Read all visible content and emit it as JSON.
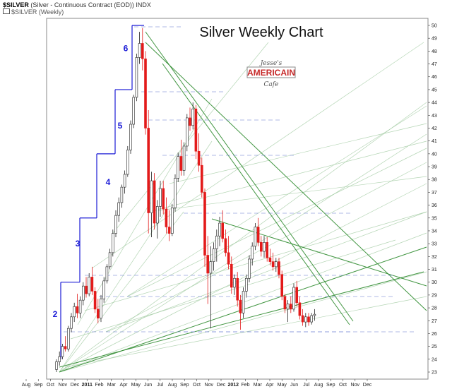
{
  "header": {
    "symbol": "$SILVER",
    "description": "(Silver - Continuous Contract (EOD)) INDX",
    "legend": "$SILVER (Weekly)"
  },
  "logo": {
    "line1": "Jesse's",
    "line2": "AMERICAIN",
    "line3": "Cafe"
  },
  "colors": {
    "up": "#ffffff",
    "down": "#e31a1a",
    "fan": "#2e8b2e",
    "wave": "#1a1ad6",
    "dash": "#7a8ad6"
  },
  "chart_data": {
    "type": "candlestick",
    "title": "Silver Weekly Chart",
    "xlabel": "",
    "ylabel": "",
    "ylim": [
      22.5,
      50.5
    ],
    "yticks": [
      23,
      24,
      25,
      26,
      27,
      28,
      29,
      30,
      31,
      32,
      33,
      34,
      35,
      36,
      37,
      38,
      39,
      40,
      41,
      42,
      43,
      44,
      45,
      46,
      47,
      48,
      49,
      50
    ],
    "y_axis_side": "right",
    "grid": false,
    "x_month_labels": [
      "Aug",
      "Sep",
      "Oct",
      "Nov",
      "Dec",
      "2011",
      "Feb",
      "Mar",
      "Apr",
      "May",
      "Jun",
      "Jul",
      "Aug",
      "Sep",
      "Oct",
      "Nov",
      "Dec",
      "2012",
      "Feb",
      "Mar",
      "Apr",
      "May",
      "Jun",
      "Jul",
      "Aug",
      "Sep",
      "Oct",
      "Nov",
      "Dec"
    ],
    "wave_labels": [
      "2",
      "3",
      "4",
      "5",
      "6"
    ],
    "wave_label_prices": [
      27.5,
      33.0,
      37.8,
      42.2,
      48.2
    ],
    "wave_steps": [
      {
        "label": "2",
        "low": 24.0,
        "high": 30.0
      },
      {
        "label": "3",
        "low": 30.0,
        "high": 35.0
      },
      {
        "label": "4",
        "low": 35.0,
        "high": 40.0
      },
      {
        "label": "5",
        "low": 40.0,
        "high": 45.0
      },
      {
        "label": "6",
        "low": 45.0,
        "high": 50.0
      }
    ],
    "candles": [
      {
        "o": 23.2,
        "h": 24.0,
        "l": 23.0,
        "c": 23.8
      },
      {
        "o": 23.8,
        "h": 24.6,
        "l": 23.5,
        "c": 24.2
      },
      {
        "o": 24.2,
        "h": 25.2,
        "l": 24.0,
        "c": 25.0
      },
      {
        "o": 25.0,
        "h": 25.8,
        "l": 24.6,
        "c": 24.8
      },
      {
        "o": 24.8,
        "h": 26.6,
        "l": 24.6,
        "c": 26.4
      },
      {
        "o": 26.4,
        "h": 27.6,
        "l": 26.1,
        "c": 27.3
      },
      {
        "o": 27.3,
        "h": 28.4,
        "l": 26.9,
        "c": 28.1
      },
      {
        "o": 28.1,
        "h": 29.1,
        "l": 27.2,
        "c": 27.6
      },
      {
        "o": 27.6,
        "h": 28.9,
        "l": 27.2,
        "c": 28.6
      },
      {
        "o": 28.6,
        "h": 30.0,
        "l": 28.2,
        "c": 29.7
      },
      {
        "o": 29.7,
        "h": 30.4,
        "l": 28.8,
        "c": 29.1
      },
      {
        "o": 29.1,
        "h": 30.7,
        "l": 28.9,
        "c": 30.4
      },
      {
        "o": 30.4,
        "h": 31.2,
        "l": 29.0,
        "c": 29.3
      },
      {
        "o": 29.3,
        "h": 29.6,
        "l": 27.6,
        "c": 27.9
      },
      {
        "o": 27.9,
        "h": 28.7,
        "l": 26.8,
        "c": 27.2
      },
      {
        "o": 27.2,
        "h": 29.0,
        "l": 26.9,
        "c": 28.7
      },
      {
        "o": 28.7,
        "h": 30.4,
        "l": 28.4,
        "c": 30.1
      },
      {
        "o": 30.1,
        "h": 31.4,
        "l": 29.9,
        "c": 31.2
      },
      {
        "o": 31.2,
        "h": 32.6,
        "l": 31.0,
        "c": 32.3
      },
      {
        "o": 32.3,
        "h": 34.1,
        "l": 32.0,
        "c": 33.8
      },
      {
        "o": 33.8,
        "h": 35.6,
        "l": 33.5,
        "c": 35.2
      },
      {
        "o": 35.2,
        "h": 36.6,
        "l": 34.7,
        "c": 36.2
      },
      {
        "o": 36.2,
        "h": 37.6,
        "l": 35.8,
        "c": 37.4
      },
      {
        "o": 37.4,
        "h": 38.7,
        "l": 36.9,
        "c": 38.4
      },
      {
        "o": 38.4,
        "h": 40.6,
        "l": 38.2,
        "c": 40.3
      },
      {
        "o": 40.3,
        "h": 42.6,
        "l": 40.0,
        "c": 42.3
      },
      {
        "o": 42.3,
        "h": 44.6,
        "l": 42.0,
        "c": 44.4
      },
      {
        "o": 44.4,
        "h": 47.8,
        "l": 44.1,
        "c": 47.5
      },
      {
        "o": 47.5,
        "h": 49.5,
        "l": 47.0,
        "c": 48.6
      },
      {
        "o": 48.6,
        "h": 49.8,
        "l": 46.5,
        "c": 47.4
      },
      {
        "o": 47.4,
        "h": 48.0,
        "l": 41.5,
        "c": 42.0
      },
      {
        "o": 42.0,
        "h": 43.4,
        "l": 33.8,
        "c": 35.4
      },
      {
        "o": 35.4,
        "h": 38.6,
        "l": 33.5,
        "c": 37.9
      },
      {
        "o": 37.9,
        "h": 38.5,
        "l": 34.1,
        "c": 34.6
      },
      {
        "o": 34.6,
        "h": 36.4,
        "l": 33.4,
        "c": 35.9
      },
      {
        "o": 35.9,
        "h": 37.9,
        "l": 35.1,
        "c": 37.3
      },
      {
        "o": 37.3,
        "h": 37.9,
        "l": 35.3,
        "c": 35.7
      },
      {
        "o": 35.7,
        "h": 36.6,
        "l": 33.8,
        "c": 34.3
      },
      {
        "o": 34.3,
        "h": 35.6,
        "l": 33.2,
        "c": 33.8
      },
      {
        "o": 33.8,
        "h": 36.1,
        "l": 33.6,
        "c": 35.8
      },
      {
        "o": 35.8,
        "h": 38.4,
        "l": 35.5,
        "c": 38.1
      },
      {
        "o": 38.1,
        "h": 40.1,
        "l": 37.8,
        "c": 39.8
      },
      {
        "o": 39.8,
        "h": 41.1,
        "l": 38.3,
        "c": 38.7
      },
      {
        "o": 38.7,
        "h": 40.9,
        "l": 38.3,
        "c": 40.6
      },
      {
        "o": 40.6,
        "h": 43.1,
        "l": 40.2,
        "c": 42.8
      },
      {
        "o": 42.8,
        "h": 43.6,
        "l": 41.8,
        "c": 42.2
      },
      {
        "o": 42.2,
        "h": 44.0,
        "l": 41.9,
        "c": 43.5
      },
      {
        "o": 43.5,
        "h": 43.8,
        "l": 39.6,
        "c": 40.2
      },
      {
        "o": 40.2,
        "h": 41.6,
        "l": 38.6,
        "c": 39.1
      },
      {
        "o": 39.1,
        "h": 39.7,
        "l": 36.6,
        "c": 37.0
      },
      {
        "o": 37.0,
        "h": 37.3,
        "l": 31.2,
        "c": 32.1
      },
      {
        "o": 32.1,
        "h": 33.6,
        "l": 28.3,
        "c": 30.7
      },
      {
        "o": 30.7,
        "h": 32.8,
        "l": 26.4,
        "c": 31.6
      },
      {
        "o": 31.6,
        "h": 33.1,
        "l": 30.9,
        "c": 32.6
      },
      {
        "o": 32.6,
        "h": 34.1,
        "l": 31.6,
        "c": 33.6
      },
      {
        "o": 33.6,
        "h": 35.1,
        "l": 32.8,
        "c": 34.6
      },
      {
        "o": 34.6,
        "h": 35.6,
        "l": 33.1,
        "c": 33.4
      },
      {
        "o": 33.4,
        "h": 34.1,
        "l": 32.0,
        "c": 32.3
      },
      {
        "o": 32.3,
        "h": 33.6,
        "l": 31.0,
        "c": 31.4
      },
      {
        "o": 31.4,
        "h": 32.0,
        "l": 29.1,
        "c": 29.6
      },
      {
        "o": 29.6,
        "h": 30.6,
        "l": 29.0,
        "c": 30.3
      },
      {
        "o": 30.3,
        "h": 30.8,
        "l": 28.1,
        "c": 28.6
      },
      {
        "o": 28.6,
        "h": 29.0,
        "l": 26.3,
        "c": 27.6
      },
      {
        "o": 27.6,
        "h": 29.6,
        "l": 27.2,
        "c": 29.3
      },
      {
        "o": 29.3,
        "h": 30.6,
        "l": 28.8,
        "c": 30.3
      },
      {
        "o": 30.3,
        "h": 32.1,
        "l": 30.0,
        "c": 31.8
      },
      {
        "o": 31.8,
        "h": 33.1,
        "l": 31.3,
        "c": 32.8
      },
      {
        "o": 32.8,
        "h": 34.6,
        "l": 32.5,
        "c": 34.3
      },
      {
        "o": 34.3,
        "h": 35.0,
        "l": 32.8,
        "c": 33.1
      },
      {
        "o": 33.1,
        "h": 33.6,
        "l": 32.0,
        "c": 32.4
      },
      {
        "o": 32.4,
        "h": 33.6,
        "l": 31.9,
        "c": 33.1
      },
      {
        "o": 33.1,
        "h": 33.5,
        "l": 31.6,
        "c": 31.9
      },
      {
        "o": 31.9,
        "h": 32.6,
        "l": 31.3,
        "c": 31.6
      },
      {
        "o": 31.6,
        "h": 32.3,
        "l": 30.9,
        "c": 31.2
      },
      {
        "o": 31.2,
        "h": 31.9,
        "l": 30.8,
        "c": 31.6
      },
      {
        "o": 31.6,
        "h": 31.9,
        "l": 30.3,
        "c": 30.6
      },
      {
        "o": 30.6,
        "h": 30.9,
        "l": 28.6,
        "c": 28.9
      },
      {
        "o": 28.9,
        "h": 29.1,
        "l": 27.6,
        "c": 27.9
      },
      {
        "o": 27.9,
        "h": 28.6,
        "l": 26.9,
        "c": 28.3
      },
      {
        "o": 28.3,
        "h": 28.9,
        "l": 27.6,
        "c": 27.9
      },
      {
        "o": 27.9,
        "h": 29.9,
        "l": 27.7,
        "c": 29.6
      },
      {
        "o": 29.6,
        "h": 30.1,
        "l": 28.1,
        "c": 28.4
      },
      {
        "o": 28.4,
        "h": 28.9,
        "l": 27.1,
        "c": 27.4
      },
      {
        "o": 27.4,
        "h": 27.9,
        "l": 26.6,
        "c": 26.9
      },
      {
        "o": 26.9,
        "h": 27.6,
        "l": 26.5,
        "c": 27.3
      },
      {
        "o": 27.3,
        "h": 27.6,
        "l": 26.6,
        "c": 26.9
      },
      {
        "o": 26.9,
        "h": 27.6,
        "l": 26.7,
        "c": 27.4
      },
      {
        "o": 27.4,
        "h": 27.9,
        "l": 27.0,
        "c": 27.5
      }
    ]
  }
}
